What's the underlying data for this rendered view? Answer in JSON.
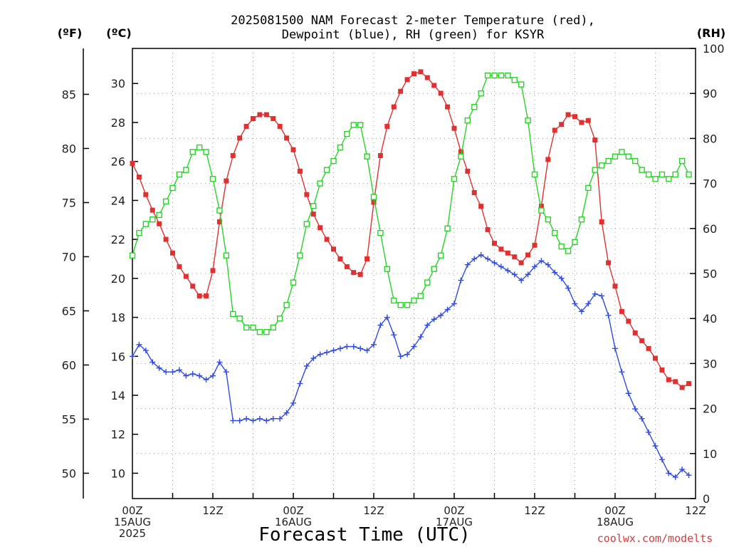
{
  "chart_data": {
    "type": "line",
    "title_line1": "2025081500 NAM Forecast 2-meter Temperature (red),",
    "title_line2": "Dewpoint (blue), RH (green) for KSYR",
    "xlabel": "Forecast Time (UTC)",
    "units": {
      "fahrenheit": "(ºF)",
      "celsius": "(ºC)",
      "rh": "(RH)"
    },
    "credit": "coolwx.com/modelts",
    "x_ticks": [
      {
        "h": 0,
        "lines": [
          "00Z",
          "15AUG",
          "2025"
        ]
      },
      {
        "h": 12,
        "lines": [
          "12Z"
        ]
      },
      {
        "h": 24,
        "lines": [
          "00Z",
          "16AUG"
        ]
      },
      {
        "h": 36,
        "lines": [
          "12Z"
        ]
      },
      {
        "h": 48,
        "lines": [
          "00Z",
          "17AUG"
        ]
      },
      {
        "h": 60,
        "lines": [
          "12Z"
        ]
      },
      {
        "h": 72,
        "lines": [
          "00Z",
          "18AUG"
        ]
      },
      {
        "h": 84,
        "lines": [
          "12Z"
        ]
      }
    ],
    "x_range_hours": [
      0,
      84
    ],
    "x_step_hours": 1,
    "ylim_celsius": [
      8.7,
      31.8
    ],
    "ylim_rh": [
      0,
      100
    ],
    "celsius_ticks": [
      10,
      12,
      14,
      16,
      18,
      20,
      22,
      24,
      26,
      28,
      30
    ],
    "fahrenheit_ticks": [
      50,
      55,
      60,
      65,
      70,
      75,
      80,
      85
    ],
    "rh_ticks": [
      0,
      10,
      20,
      30,
      40,
      50,
      60,
      70,
      80,
      90,
      100
    ],
    "series": [
      {
        "name": "Temperature",
        "unit": "C",
        "color": "#e03131",
        "marker": "filled-square",
        "values": [
          25.9,
          25.2,
          24.3,
          23.5,
          22.8,
          22.0,
          21.3,
          20.6,
          20.1,
          19.6,
          19.1,
          19.1,
          20.4,
          22.9,
          25.0,
          26.3,
          27.2,
          27.8,
          28.2,
          28.4,
          28.4,
          28.2,
          27.8,
          27.2,
          26.6,
          25.5,
          24.3,
          23.3,
          22.6,
          22.0,
          21.5,
          21.0,
          20.6,
          20.3,
          20.2,
          21.0,
          23.9,
          26.3,
          27.8,
          28.8,
          29.6,
          30.2,
          30.5,
          30.6,
          30.3,
          29.9,
          29.5,
          28.8,
          27.7,
          26.5,
          25.5,
          24.4,
          23.7,
          22.5,
          21.8,
          21.5,
          21.3,
          21.1,
          20.8,
          21.2,
          21.7,
          23.7,
          26.1,
          27.6,
          27.9,
          28.4,
          28.3,
          28.0,
          28.1,
          27.1,
          22.9,
          20.8,
          19.6,
          18.3,
          17.8,
          17.2,
          16.8,
          16.4,
          15.9,
          15.3,
          14.8,
          14.7,
          14.4,
          14.6
        ]
      },
      {
        "name": "Dewpoint",
        "unit": "C",
        "color": "#2f4be0",
        "marker": "plus",
        "values": [
          16.0,
          16.6,
          16.3,
          15.7,
          15.4,
          15.2,
          15.2,
          15.3,
          15.0,
          15.1,
          15.0,
          14.8,
          15.0,
          15.7,
          15.2,
          12.7,
          12.7,
          12.8,
          12.7,
          12.8,
          12.7,
          12.8,
          12.8,
          13.1,
          13.6,
          14.6,
          15.5,
          15.9,
          16.1,
          16.2,
          16.3,
          16.4,
          16.5,
          16.5,
          16.4,
          16.3,
          16.6,
          17.6,
          18.0,
          17.1,
          16.0,
          16.1,
          16.5,
          17.0,
          17.6,
          17.9,
          18.1,
          18.4,
          18.7,
          19.9,
          20.7,
          21.0,
          21.2,
          21.0,
          20.8,
          20.6,
          20.4,
          20.2,
          19.9,
          20.2,
          20.6,
          20.9,
          20.7,
          20.3,
          20.0,
          19.5,
          18.7,
          18.3,
          18.7,
          19.2,
          19.1,
          18.1,
          16.4,
          15.2,
          14.1,
          13.3,
          12.8,
          12.1,
          11.4,
          10.7,
          10.0,
          9.8,
          10.2,
          9.9
        ]
      },
      {
        "name": "RH",
        "unit": "%",
        "color": "#27d427",
        "marker": "open-square",
        "values": [
          54,
          59,
          61,
          62,
          63,
          66,
          69,
          72,
          73,
          77,
          78,
          77,
          71,
          64,
          54,
          41,
          40,
          38,
          38,
          37,
          37,
          38,
          40,
          43,
          48,
          54,
          61,
          65,
          70,
          73,
          75,
          78,
          81,
          83,
          83,
          76,
          67,
          59,
          51,
          44,
          43,
          43,
          44,
          45,
          48,
          51,
          54,
          60,
          71,
          76,
          84,
          87,
          90,
          94,
          94,
          94,
          94,
          93,
          92,
          84,
          72,
          64,
          62,
          59,
          56,
          55,
          57,
          62,
          69,
          73,
          74,
          75,
          76,
          77,
          76,
          75,
          73,
          72,
          71,
          72,
          71,
          72,
          75,
          72
        ]
      }
    ],
    "grid": true,
    "legend": "none"
  }
}
